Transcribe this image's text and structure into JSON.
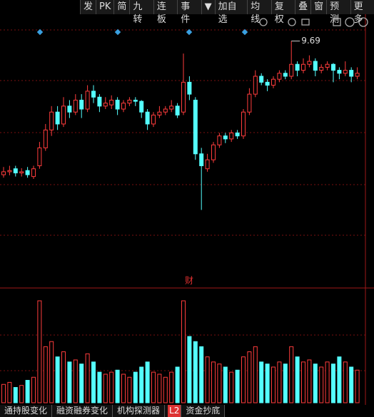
{
  "toolbar": [
    "发",
    "PK",
    "简",
    "九转",
    "连板",
    "事件",
    "▼",
    "加自选",
    "均线",
    "复权",
    "叠",
    "窗",
    "预测",
    "更多"
  ],
  "tabs": [
    "通持股变化",
    "融资融券变化",
    "机构探测器",
    "L2",
    "资金抄底"
  ],
  "chart_data": {
    "type": "candlestick",
    "annotation": "9.69",
    "panel_label": "财",
    "ylim": [
      5.6,
      9.9
    ],
    "candles": [
      [
        7.45,
        7.58,
        7.4,
        7.5
      ],
      [
        7.5,
        7.6,
        7.44,
        7.52
      ],
      [
        7.55,
        7.6,
        7.42,
        7.48
      ],
      [
        7.48,
        7.56,
        7.42,
        7.5
      ],
      [
        7.52,
        7.58,
        7.4,
        7.45
      ],
      [
        7.42,
        7.6,
        7.38,
        7.55
      ],
      [
        7.6,
        8.0,
        7.55,
        7.9
      ],
      [
        7.9,
        8.3,
        7.85,
        8.2
      ],
      [
        8.2,
        8.6,
        8.1,
        8.5
      ],
      [
        8.5,
        8.6,
        8.2,
        8.3
      ],
      [
        8.3,
        8.75,
        8.25,
        8.6
      ],
      [
        8.6,
        8.7,
        8.4,
        8.5
      ],
      [
        8.5,
        8.8,
        8.45,
        8.7
      ],
      [
        8.7,
        8.8,
        8.4,
        8.55
      ],
      [
        8.55,
        8.95,
        8.5,
        8.85
      ],
      [
        8.85,
        8.95,
        8.65,
        8.75
      ],
      [
        8.75,
        8.8,
        8.5,
        8.6
      ],
      [
        8.6,
        8.75,
        8.55,
        8.65
      ],
      [
        8.62,
        8.78,
        8.55,
        8.7
      ],
      [
        8.7,
        8.75,
        8.45,
        8.55
      ],
      [
        8.55,
        8.7,
        8.5,
        8.65
      ],
      [
        8.65,
        8.75,
        8.6,
        8.7
      ],
      [
        8.7,
        8.75,
        8.6,
        8.68
      ],
      [
        8.68,
        8.7,
        8.4,
        8.5
      ],
      [
        8.5,
        8.55,
        8.2,
        8.3
      ],
      [
        8.3,
        8.5,
        8.25,
        8.45
      ],
      [
        8.45,
        8.6,
        8.4,
        8.5
      ],
      [
        8.5,
        8.6,
        8.45,
        8.55
      ],
      [
        8.55,
        8.7,
        8.5,
        8.6
      ],
      [
        8.6,
        8.65,
        8.4,
        8.45
      ],
      [
        8.5,
        9.48,
        8.45,
        9.0
      ],
      [
        9.0,
        9.1,
        8.7,
        8.8
      ],
      [
        8.7,
        8.75,
        7.7,
        7.8
      ],
      [
        7.8,
        7.9,
        6.86,
        7.6
      ],
      [
        7.55,
        7.8,
        7.5,
        7.7
      ],
      [
        7.7,
        8.0,
        7.65,
        7.95
      ],
      [
        7.95,
        8.15,
        7.9,
        8.1
      ],
      [
        8.1,
        8.15,
        7.98,
        8.05
      ],
      [
        8.05,
        8.2,
        8.0,
        8.15
      ],
      [
        8.15,
        8.2,
        8.05,
        8.1
      ],
      [
        8.1,
        8.55,
        8.05,
        8.5
      ],
      [
        8.5,
        8.9,
        8.45,
        8.8
      ],
      [
        8.8,
        9.2,
        8.75,
        9.1
      ],
      [
        9.1,
        9.15,
        8.95,
        9.0
      ],
      [
        9.0,
        9.05,
        8.85,
        8.95
      ],
      [
        8.95,
        9.1,
        8.9,
        9.05
      ],
      [
        9.05,
        9.2,
        9.0,
        9.15
      ],
      [
        9.15,
        9.2,
        9.05,
        9.1
      ],
      [
        9.1,
        9.69,
        9.05,
        9.3
      ],
      [
        9.3,
        9.35,
        9.1,
        9.2
      ],
      [
        9.2,
        9.4,
        9.15,
        9.3
      ],
      [
        9.3,
        9.45,
        9.25,
        9.35
      ],
      [
        9.35,
        9.4,
        9.1,
        9.2
      ],
      [
        9.2,
        9.3,
        9.15,
        9.25
      ],
      [
        9.25,
        9.35,
        9.2,
        9.3
      ],
      [
        9.3,
        9.32,
        9.0,
        9.2
      ],
      [
        9.2,
        9.25,
        9.05,
        9.15
      ],
      [
        9.15,
        9.35,
        9.1,
        9.2
      ],
      [
        9.2,
        9.25,
        9.0,
        9.1
      ],
      [
        9.1,
        9.25,
        9.05,
        9.15
      ]
    ],
    "volume_ylim": [
      0,
      100
    ],
    "volume": [
      18,
      20,
      15,
      17,
      22,
      25,
      100,
      55,
      60,
      45,
      50,
      40,
      42,
      38,
      48,
      40,
      30,
      28,
      30,
      32,
      28,
      25,
      30,
      35,
      40,
      30,
      28,
      25,
      30,
      35,
      100,
      65,
      60,
      55,
      45,
      40,
      38,
      35,
      30,
      32,
      45,
      50,
      55,
      40,
      38,
      35,
      40,
      38,
      55,
      45,
      40,
      42,
      38,
      35,
      40,
      38,
      45,
      40,
      35,
      32
    ]
  }
}
